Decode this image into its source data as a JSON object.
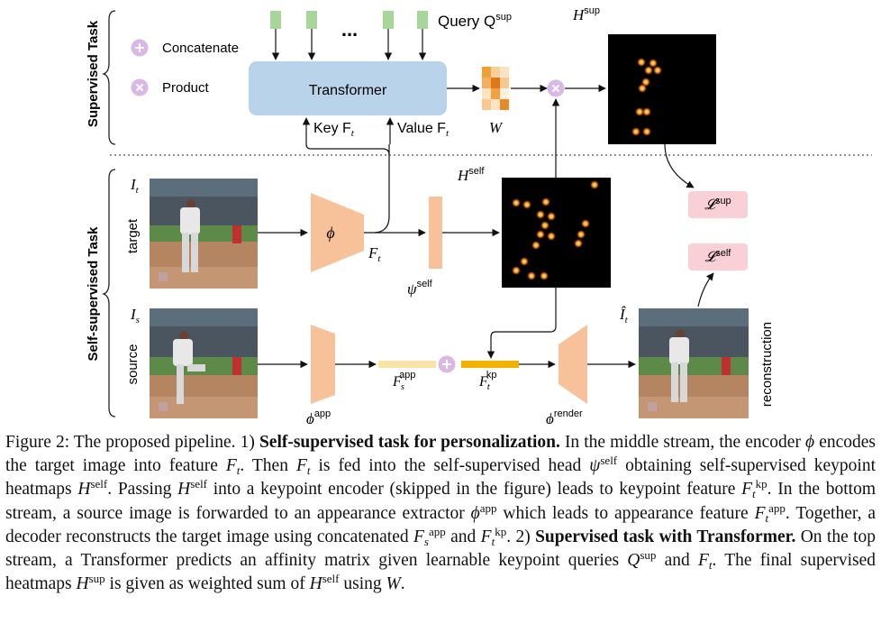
{
  "supervised_task_label": "Supervised Task",
  "self_supervised_task_label": "Self-supervised Task",
  "legend": {
    "concatenate": "Concatenate",
    "product": "Product"
  },
  "query_label": "Query Q",
  "query_sup": "sup",
  "query_dots": "...",
  "transformer_label": "Transformer",
  "key_label": "Key F",
  "value_label": "Value F",
  "sub_t": "t",
  "w_label": "W",
  "h_sup_label": "H",
  "h_self_label": "H",
  "sup_tag": "sup",
  "self_tag": "self",
  "it_label": "I",
  "is_label": "I",
  "sub_s": "s",
  "target_label": "target",
  "source_label": "source",
  "phi_label": "ϕ",
  "ft_label": "F",
  "psi_label": "ψ",
  "phi_app_label": "ϕ",
  "app_tag": "app",
  "fs_app_label": "F",
  "ft_kp_label": "F",
  "kp_tag": "kp",
  "phi_render_label": "ϕ",
  "render_tag": "render",
  "it_hat_label": "Î",
  "loss_sup_label": "𝓛",
  "loss_self_label": "𝓛",
  "reconstruction_label": "reconstruction",
  "colors": {
    "transformer": "#b9d4ea",
    "query": "#a8d59a",
    "trapezoid": "#f7c29a",
    "appearance_bar": "#f7e4a6",
    "keypoint_bar": "#f0b400",
    "operator": "#dab8e6",
    "loss_box": "#f8d0d6",
    "heatmap_bg": "#000000",
    "heatmap_dot": "#ff9a1a"
  },
  "caption": {
    "fig": "Figure 2: The proposed pipeline. 1) ",
    "b1": "Self-supervised task for personalization.",
    "t1": " In the middle stream, the encoder ",
    "phi": "ϕ",
    "t2": " encodes the target image into feature ",
    "F": "F",
    "t": "t",
    "t3": ". Then ",
    "t4": " is fed into the self-supervised head ",
    "psi": "ψ",
    "self": "self",
    "t5": " obtaining self-supervised keypoint heatmaps ",
    "H": "H",
    "t6": ". Passing ",
    "t7": " into a keypoint encoder (skipped in the figure) leads to keypoint feature ",
    "kp": "kp",
    "t8": ". In the bottom stream, a source image is forwarded to an appearance extractor ",
    "app": "app",
    "t9": " which leads to appearance feature ",
    "t10": ". Together, a decoder reconstructs the target image using concatenated ",
    "s": "s",
    "and": " and ",
    "t11": ". 2) ",
    "b2": "Supervised task with Transformer.",
    "t12": " On the top stream, a Transformer predicts an affinity matrix given learnable keypoint queries ",
    "Q": "Q",
    "sup": "sup",
    "t13": " and ",
    "t14": ". The final supervised heatmaps ",
    "t15": " is given as weighted sum of ",
    "t16": " using ",
    "W": "W",
    "end": "."
  }
}
